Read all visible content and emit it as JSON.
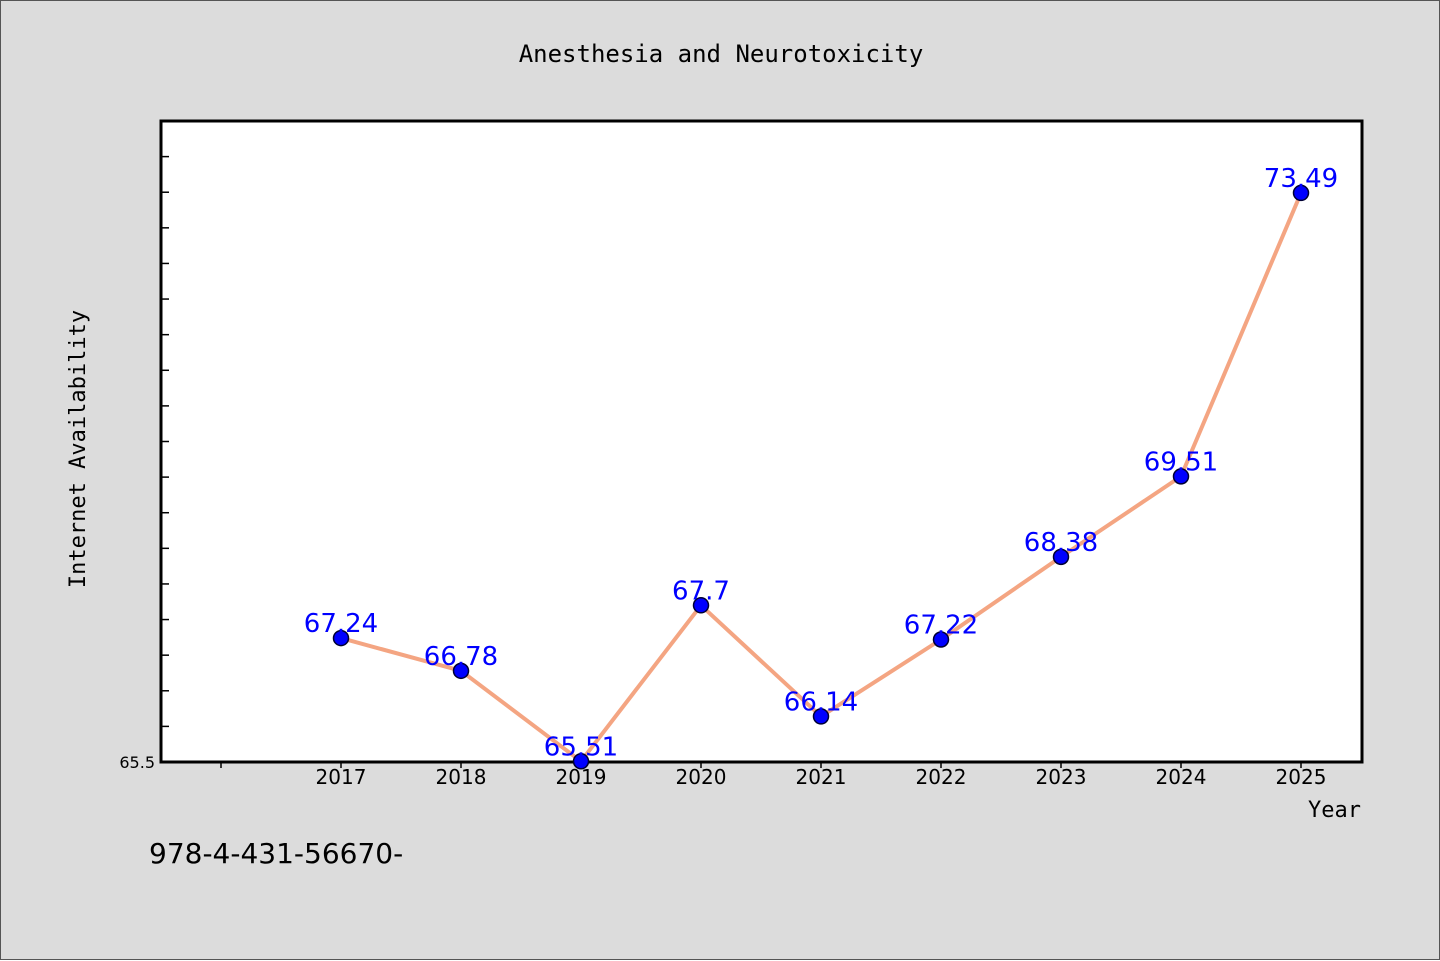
{
  "chart_data": {
    "type": "line",
    "title": "Anesthesia and Neurotoxicity",
    "xlabel": "Year",
    "ylabel": "Internet Availability",
    "x": [
      "2017",
      "2018",
      "2019",
      "2020",
      "2021",
      "2022",
      "2023",
      "2024",
      "2025"
    ],
    "values": [
      67.24,
      66.78,
      65.51,
      67.7,
      66.14,
      67.22,
      68.38,
      69.51,
      73.49
    ],
    "data_labels": [
      "67.24",
      "66.78",
      "65.51",
      "67.7",
      "66.14",
      "67.22",
      "68.38",
      "69.51",
      "73.49"
    ],
    "y_tick_labels": [
      "65.5"
    ],
    "ylim": [
      65.5,
      74.5
    ],
    "grid": false,
    "legend": "none",
    "colors": {
      "line": "#f4a582",
      "marker_fill": "#0000ff",
      "marker_edge": "#000033",
      "data_label": "#0000ff",
      "plot_background": "#ffffff",
      "figure_background": "#dcdcdc"
    }
  },
  "footer_code": "978-4-431-56670-"
}
